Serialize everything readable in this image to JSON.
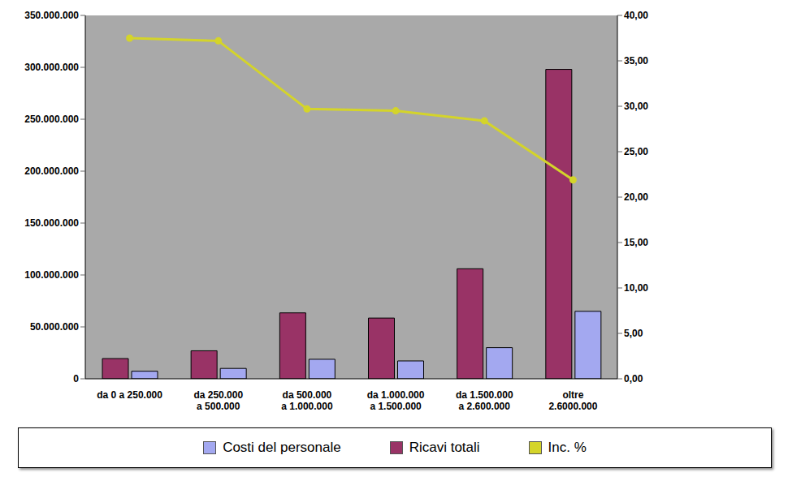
{
  "chart_data": {
    "type": "bar",
    "categories": [
      "da 0 a 250.000",
      "da 250.000\na 500.000",
      "da 500.000\na 1.000.000",
      "da 1.000.000\na 1.500.000",
      "da 1.500.000\na 2.600.000",
      "oltre\n2.6000.000"
    ],
    "series": [
      {
        "name": "Costi del personale",
        "type": "bar",
        "color": "#a3a8f0",
        "values": [
          7300000,
          10000000,
          18800000,
          17200000,
          30000000,
          65000000
        ]
      },
      {
        "name": "Ricavi totali",
        "type": "bar",
        "color": "#993366",
        "values": [
          19500000,
          27000000,
          63500000,
          58500000,
          106000000,
          298000000
        ]
      },
      {
        "name": "Inc. %",
        "type": "line",
        "axis": "y2",
        "color": "#d4d42a",
        "marker": "circle",
        "line_style": "solid",
        "values": [
          37.5,
          37.2,
          29.7,
          29.5,
          28.4,
          21.9
        ]
      }
    ],
    "ylim": [
      0,
      350000000
    ],
    "yticks": [
      0,
      {
        "value": 50000000,
        "label": "50.000.000"
      },
      {
        "value": 100000000,
        "label": "100.000.000"
      },
      {
        "value": 150000000,
        "label": "150.000.000"
      },
      {
        "value": 200000000,
        "label": "200.000.000"
      },
      {
        "value": 250000000,
        "label": "250.000.000"
      },
      {
        "value": 300000000,
        "label": "300.000.000"
      },
      {
        "value": 350000000,
        "label": "350.000.000"
      }
    ],
    "y2lim": [
      0,
      40
    ],
    "y2ticks": [
      {
        "value": 0,
        "label": "0,00"
      },
      {
        "value": 5,
        "label": "5,00"
      },
      {
        "value": 10,
        "label": "10,00"
      },
      {
        "value": 15,
        "label": "15,00"
      },
      {
        "value": 20,
        "label": "20,00"
      },
      {
        "value": 25,
        "label": "25,00"
      },
      {
        "value": 30,
        "label": "30,00"
      },
      {
        "value": 35,
        "label": "35,00"
      },
      {
        "value": 40,
        "label": "40,00"
      }
    ],
    "grid": false,
    "legend": "bottom"
  }
}
